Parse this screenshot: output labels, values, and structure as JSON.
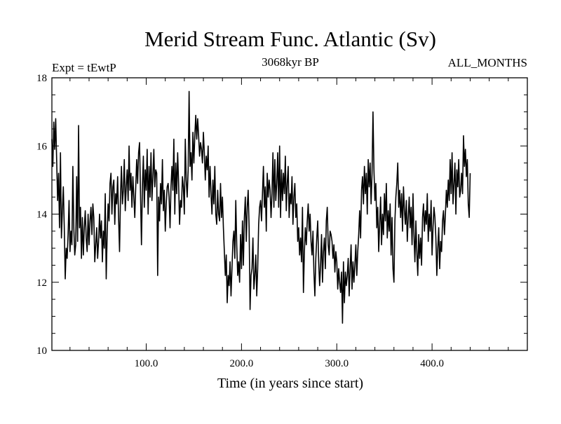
{
  "chart_data": {
    "type": "line",
    "title": "Merid Stream Func. Atlantic (Sv)",
    "experiment_label": "Expt = tEwtP",
    "period_label": "3068kyr BP",
    "months_label": "ALL_MONTHS",
    "xlabel": "Time (in years since start)",
    "ylabel": "",
    "xlim": [
      1,
      500
    ],
    "ylim": [
      10,
      18
    ],
    "x_ticks": [
      100,
      200,
      300,
      400
    ],
    "x_tick_labels": [
      "100.0",
      "200.0",
      "300.0",
      "400.0"
    ],
    "y_ticks": [
      10,
      12,
      14,
      16,
      18
    ],
    "y_tick_labels": [
      "10",
      "12",
      "14",
      "16",
      "18"
    ],
    "grid": false,
    "series": [
      {
        "name": "Merid Stream Func. Atlantic",
        "x_start": 1,
        "x_step": 1,
        "color": "#000000",
        "values": [
          16.2,
          15.4,
          16.7,
          15.9,
          16.8,
          15.6,
          14.4,
          15.2,
          13.6,
          15.8,
          13.3,
          14.1,
          14.8,
          13.6,
          12.1,
          13.0,
          12.7,
          13.4,
          14.4,
          12.9,
          13.5,
          13.1,
          15.4,
          13.6,
          12.8,
          13.1,
          15.1,
          13.2,
          16.6,
          13.6,
          14.2,
          12.7,
          13.9,
          12.8,
          13.6,
          14.1,
          13.3,
          12.9,
          14.0,
          13.1,
          13.8,
          14.2,
          13.4,
          14.3,
          13.9,
          12.6,
          13.1,
          13.6,
          12.7,
          13.2,
          14.0,
          13.3,
          13.8,
          12.6,
          13.5,
          13.0,
          14.6,
          12.1,
          13.4,
          14.3,
          13.8,
          14.9,
          15.2,
          14.0,
          14.8,
          15.0,
          13.7,
          14.6,
          14.3,
          15.1,
          13.9,
          12.9,
          14.5,
          15.4,
          14.3,
          14.7,
          15.6,
          14.1,
          14.8,
          15.3,
          14.4,
          16.0,
          14.7,
          15.2,
          14.2,
          15.1,
          14.5,
          13.9,
          14.8,
          15.6,
          14.9,
          15.8,
          16.1,
          14.6,
          13.1,
          14.8,
          15.7,
          14.2,
          15.3,
          14.7,
          15.9,
          14.0,
          15.4,
          14.5,
          15.8,
          14.4,
          15.1,
          15.9,
          14.8,
          15.3,
          15.2,
          12.2,
          14.5,
          13.8,
          14.9,
          14.3,
          15.6,
          14.1,
          14.7,
          13.5,
          14.3,
          14.8,
          14.9,
          14.5,
          13.6,
          14.8,
          15.4,
          14.7,
          16.2,
          14.0,
          15.5,
          14.6,
          15.8,
          14.9,
          13.7,
          14.4,
          14.2,
          15.1,
          14.8,
          14.0,
          16.2,
          15.0,
          14.5,
          15.3,
          17.6,
          15.4,
          15.8,
          15.0,
          16.4,
          15.5,
          16.3,
          16.9,
          16.2,
          16.8,
          16.3,
          15.7,
          16.1,
          15.9,
          15.5,
          16.4,
          15.8,
          15.0,
          15.7,
          15.3,
          16.0,
          14.5,
          15.4,
          14.6,
          14.0,
          15.0,
          14.3,
          15.4,
          14.0,
          13.7,
          14.7,
          14.0,
          13.8,
          14.9,
          13.9,
          14.5,
          13.6,
          12.9,
          12.2,
          12.8,
          11.4,
          12.2,
          11.9,
          12.6,
          11.6,
          12.4,
          13.2,
          13.5,
          12.7,
          14.4,
          13.1,
          12.2,
          12.6,
          12.0,
          13.4,
          12.4,
          13.8,
          12.5,
          13.9,
          14.5,
          13.2,
          14.2,
          14.7,
          13.6,
          11.2,
          12.2,
          12.4,
          13.3,
          11.8,
          12.2,
          12.8,
          11.6,
          12.4,
          13.7,
          14.2,
          14.4,
          13.8,
          14.6,
          15.4,
          14.2,
          14.8,
          13.5,
          15.2,
          14.5,
          15.0,
          14.7,
          13.9,
          14.6,
          15.8,
          14.2,
          15.6,
          14.4,
          14.9,
          15.8,
          14.2,
          16.0,
          13.9,
          15.3,
          14.4,
          15.2,
          14.6,
          15.7,
          14.1,
          14.9,
          15.4,
          13.9,
          14.6,
          14.3,
          15.1,
          13.7,
          14.5,
          14.9,
          13.9,
          14.3,
          13.2,
          13.6,
          12.8,
          13.3,
          12.6,
          14.2,
          11.7,
          12.9,
          13.6,
          13.1,
          13.8,
          14.3,
          13.5,
          14.0,
          13.2,
          12.8,
          13.5,
          12.3,
          11.6,
          12.7,
          13.3,
          13.8,
          12.6,
          11.9,
          12.5,
          13.4,
          12.0,
          12.9,
          13.3,
          12.4,
          13.8,
          14.2,
          13.1,
          12.8,
          13.5,
          13.4,
          13.2,
          12.7,
          13.1,
          12.3,
          12.9,
          12.6,
          11.8,
          12.4,
          12.0,
          11.7,
          12.3,
          10.8,
          12.6,
          11.4,
          12.3,
          11.9,
          12.2,
          12.7,
          11.6,
          12.4,
          13.1,
          11.8,
          12.6,
          12.0,
          12.5,
          13.1,
          12.2,
          12.9,
          13.4,
          14.1,
          13.3,
          14.7,
          15.1,
          14.3,
          15.4,
          14.6,
          15.2,
          14.0,
          15.6,
          14.8,
          15.5,
          14.3,
          15.2,
          17.0,
          15.3,
          14.4,
          14.9,
          13.6,
          14.2,
          12.9,
          13.7,
          14.5,
          13.1,
          14.0,
          13.4,
          14.6,
          13.8,
          14.9,
          13.3,
          14.1,
          13.5,
          14.3,
          12.8,
          13.9,
          12.4,
          12.0,
          13.8,
          14.5,
          14.9,
          15.5,
          14.2,
          14.7,
          13.9,
          14.6,
          13.5,
          14.8,
          14.1,
          13.7,
          14.4,
          13.2,
          13.9,
          14.5,
          13.6,
          14.2,
          13.1,
          14.6,
          13.4,
          12.6,
          13.8,
          12.9,
          12.2,
          13.4,
          12.7,
          13.3,
          12.5,
          13.9,
          14.3,
          13.5,
          14.1,
          13.7,
          14.6,
          13.2,
          14.0,
          13.5,
          14.4,
          12.8,
          13.6,
          14.2,
          13.9,
          13.3,
          12.2,
          13.0,
          13.6,
          12.4,
          13.2,
          12.9,
          13.8,
          14.1,
          13.4,
          14.0,
          14.7,
          14.2,
          15.0,
          14.4,
          15.6,
          14.6,
          15.8,
          14.3,
          14.9,
          15.5,
          14.0,
          15.3,
          14.8,
          15.6,
          14.5,
          14.7,
          15.2,
          14.6,
          16.3,
          15.4,
          15.9,
          15.1,
          15.6,
          14.3,
          13.9,
          15.2
        ]
      }
    ]
  }
}
